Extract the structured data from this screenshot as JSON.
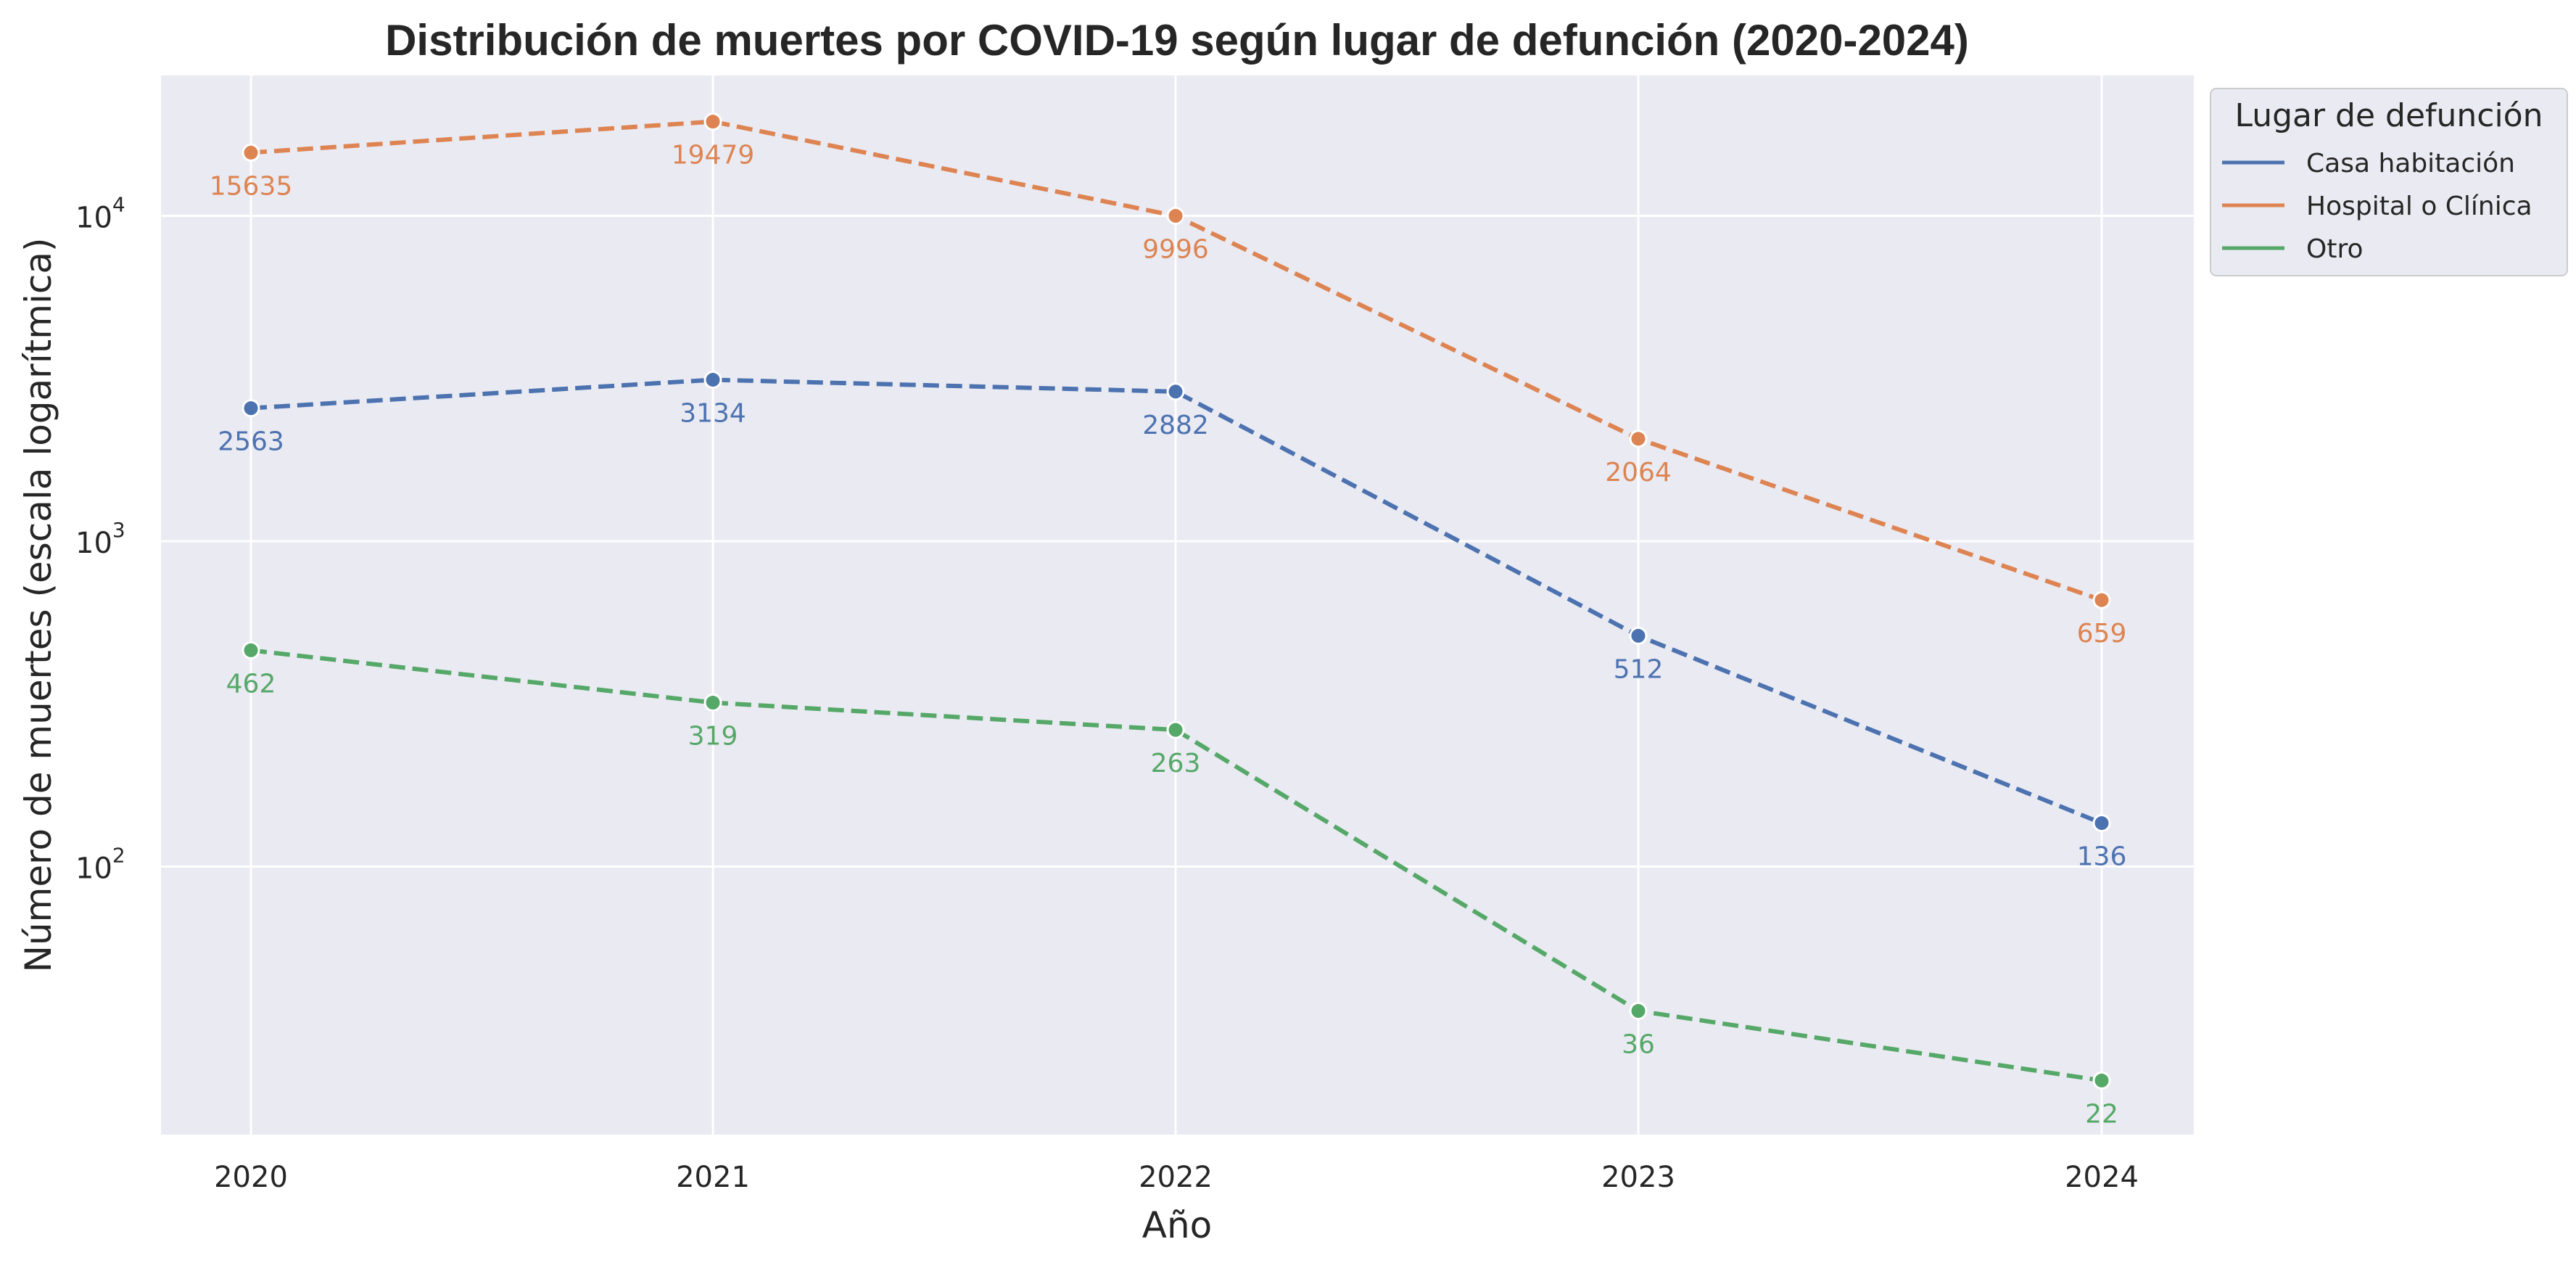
{
  "chart_data": {
    "type": "line",
    "title": "Distribución de muertes por COVID-19 según lugar de defunción (2020-2024)",
    "xlabel": "Año",
    "ylabel": "Número de muertes (escala logarítmica)",
    "x": [
      "2020",
      "2021",
      "2022",
      "2023",
      "2024"
    ],
    "y_scale": "log",
    "ylim": [
      15,
      27000
    ],
    "y_ticks": [
      {
        "value": 100,
        "base": "10",
        "exp": "2"
      },
      {
        "value": 1000,
        "base": "10",
        "exp": "3"
      },
      {
        "value": 10000,
        "base": "10",
        "exp": "4"
      }
    ],
    "grid": true,
    "line_style": "dashed",
    "markers": true,
    "legend": {
      "title": "Lugar de defunción",
      "placement": "outside-top-right"
    },
    "series": [
      {
        "name": "Casa habitación",
        "color": "#4c72b0",
        "values": [
          2563,
          3134,
          2882,
          512,
          136
        ]
      },
      {
        "name": "Hospital o Clínica",
        "color": "#dd8452",
        "values": [
          15635,
          19479,
          9996,
          2064,
          659
        ]
      },
      {
        "name": "Otro",
        "color": "#55a868",
        "values": [
          462,
          319,
          263,
          36,
          22
        ]
      }
    ]
  }
}
